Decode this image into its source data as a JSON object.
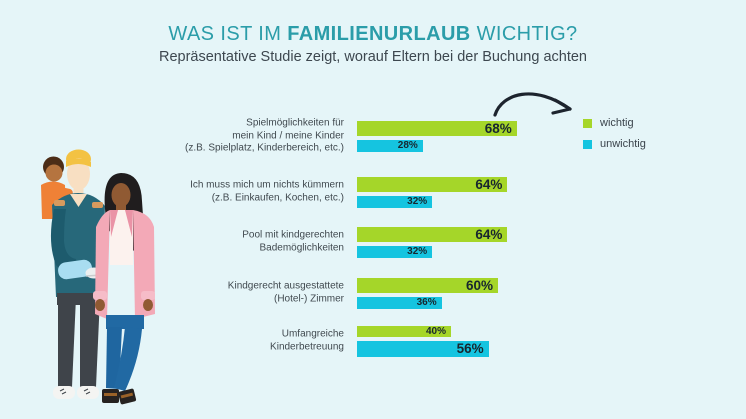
{
  "header": {
    "title_pre": "WAS IST IM ",
    "title_bold": "FAMILIENURLAUB",
    "title_post": " WICHTIG?",
    "subtitle": "Repräsentative Studie zeigt, worauf Eltern bei der Buchung achten"
  },
  "legend": {
    "items": [
      {
        "label": "wichtig",
        "color": "#a5d629"
      },
      {
        "label": "unwichtig",
        "color": "#15c4e0"
      }
    ]
  },
  "colors": {
    "background": "#e5f5f8",
    "title_teal": "#2b9da9",
    "text_dark": "#40494f",
    "bar_green": "#a5d629",
    "bar_cyan": "#15c4e0",
    "value_text": "#17262e",
    "arrow": "#1d242e"
  },
  "chart_data": {
    "type": "bar",
    "orientation": "horizontal",
    "unit": "%",
    "xlim": [
      0,
      100
    ],
    "legend_position": "top-right",
    "grid": false,
    "categories": [
      "Spielmöglichkeiten für mein Kind / meine Kinder (z.B. Spielplatz, Kinderbereich, etc.)",
      "Ich muss mich um nichts kümmern (z.B. Einkaufen, Kochen, etc.)",
      "Pool mit kindgerechten Bademöglichkeiten",
      "Kindgerecht ausgestattete (Hotel-) Zimmer",
      "Umfangreiche Kinderbetreuung"
    ],
    "series": [
      {
        "name": "wichtig",
        "color": "#a5d629",
        "values": [
          68,
          64,
          64,
          60,
          40
        ]
      },
      {
        "name": "unwichtig",
        "color": "#15c4e0",
        "values": [
          28,
          32,
          32,
          36,
          56
        ]
      }
    ],
    "rows": [
      {
        "label": "Spielmöglichkeiten für\nmein Kind / meine Kinder\n(z.B. Spielplatz, Kinderbereich, etc.)",
        "wichtig": 68,
        "unwichtig": 28,
        "wichtig_label": "68%",
        "unwichtig_label": "28%"
      },
      {
        "label": "Ich muss mich um nichts kümmern\n(z.B. Einkaufen, Kochen, etc.)",
        "wichtig": 64,
        "unwichtig": 32,
        "wichtig_label": "64%",
        "unwichtig_label": "32%"
      },
      {
        "label": "Pool mit kindgerechten\nBademöglichkeiten",
        "wichtig": 64,
        "unwichtig": 32,
        "wichtig_label": "64%",
        "unwichtig_label": "32%"
      },
      {
        "label": "Kindgerecht ausgestattete\n(Hotel-) Zimmer",
        "wichtig": 60,
        "unwichtig": 36,
        "wichtig_label": "60%",
        "unwichtig_label": "36%"
      },
      {
        "label": "Umfangreiche\nKinderbetreuung",
        "wichtig": 40,
        "unwichtig": 56,
        "wichtig_label": "40%",
        "unwichtig_label": "56%"
      }
    ]
  }
}
